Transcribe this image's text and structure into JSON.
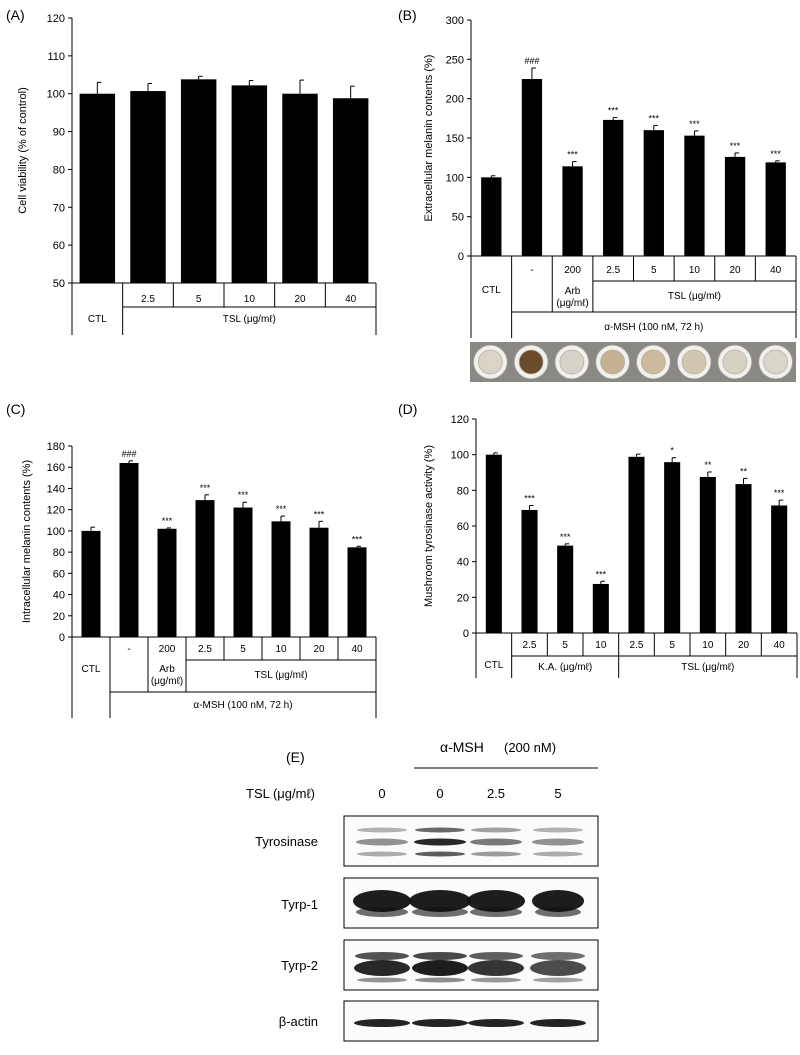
{
  "chart_data": [
    {
      "type": "bar",
      "panel": "(A)",
      "ylabel": "Cell viability (% of control)",
      "ylim": [
        50,
        120
      ],
      "yticks": [
        50,
        60,
        70,
        80,
        90,
        100,
        110,
        120
      ],
      "categories": [
        "CTL",
        "2.5",
        "5",
        "10",
        "20",
        "40"
      ],
      "values": [
        100,
        100.7,
        103.8,
        102.2,
        100,
        98.8
      ],
      "errors": [
        3.0,
        2.0,
        0.8,
        1.3,
        3.6,
        3.2
      ],
      "significance": [
        "",
        "",
        "",
        "",
        "",
        ""
      ],
      "group_labels": [
        "CTL",
        "TSL (μg/mℓ)"
      ]
    },
    {
      "type": "bar",
      "panel": "(B)",
      "ylabel": "Extracellular melanin contents (%)",
      "ylim": [
        0,
        300
      ],
      "yticks": [
        0,
        50,
        100,
        150,
        200,
        250,
        300
      ],
      "categories": [
        "CTL",
        "-",
        "200",
        "2.5",
        "5",
        "10",
        "20",
        "40"
      ],
      "values": [
        100,
        225,
        114,
        173,
        160,
        153,
        126,
        119
      ],
      "errors": [
        2,
        14,
        6,
        3,
        6,
        6,
        5,
        2
      ],
      "significance": [
        "",
        "###",
        "***",
        "***",
        "***",
        "***",
        "***",
        "***"
      ],
      "sub_labels": [
        "Arb",
        "(μg/mℓ)"
      ],
      "group_labels": [
        "TSL (μg/mℓ)",
        "α-MSH (100 nM, 72 h)"
      ]
    },
    {
      "type": "bar",
      "panel": "(C)",
      "ylabel": "Intracellular melanin contents (%)",
      "ylim": [
        0,
        180
      ],
      "yticks": [
        0,
        20,
        40,
        60,
        80,
        100,
        120,
        140,
        160,
        180
      ],
      "categories": [
        "CTL",
        "-",
        "200",
        "2.5",
        "5",
        "10",
        "20",
        "40"
      ],
      "values": [
        100,
        164,
        102,
        129,
        122,
        109,
        103,
        84.5
      ],
      "errors": [
        3.5,
        2,
        0.8,
        5,
        5,
        5,
        6,
        1
      ],
      "significance": [
        "",
        "###",
        "***",
        "***",
        "***",
        "***",
        "***",
        "***"
      ],
      "sub_labels": [
        "Arb",
        "(μg/mℓ)"
      ],
      "group_labels": [
        "TSL (μg/mℓ)",
        "α-MSH (100 nM, 72 h)"
      ]
    },
    {
      "type": "bar",
      "panel": "(D)",
      "ylabel": "Mushroom tyrosinase activity (%)",
      "ylim": [
        0,
        120
      ],
      "yticks": [
        0,
        20,
        40,
        60,
        80,
        100,
        120
      ],
      "categories": [
        "CTL",
        "2.5",
        "5",
        "10",
        "2.5",
        "5",
        "10",
        "20",
        "40"
      ],
      "values": [
        100,
        69,
        49,
        27.5,
        98.8,
        95.8,
        87.5,
        83.5,
        71.5
      ],
      "errors": [
        1,
        2.5,
        1,
        1.5,
        1.5,
        2.5,
        2.8,
        3.2,
        3
      ],
      "significance": [
        "",
        "***",
        "***",
        "***",
        "",
        "*",
        "**",
        "**",
        "***"
      ],
      "group_labels": [
        "K.A. (μg/mℓ)",
        "TSL (μg/mℓ)"
      ]
    }
  ],
  "panel_e": {
    "letter": "(E)",
    "header": "α-MSH",
    "header_conc": "(200 nM)",
    "row_label": "TSL (μg/mℓ)",
    "lanes": [
      "0",
      "0",
      "2.5",
      "5"
    ],
    "blots": [
      "Tyrosinase",
      "Tyrp-1",
      "Tyrp-2",
      "β-actin"
    ]
  }
}
